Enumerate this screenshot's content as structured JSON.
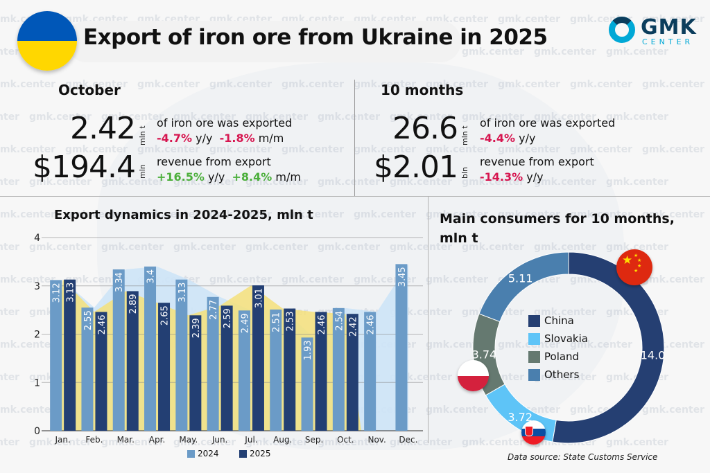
{
  "header": {
    "title": "Export of iron ore from Ukraine in 2025",
    "logo_main": "GMK",
    "logo_sub": "CENTER",
    "watermark": "gmk.center"
  },
  "colors": {
    "c2024": "#6b9bc7",
    "c2025": "#233f73",
    "area2024": "#cde4f7",
    "area2025": "#f5e07a",
    "negative": "#d6154f",
    "positive": "#4caf3c",
    "china": "#253f72",
    "slovakia": "#5ec4f7",
    "poland": "#657970",
    "others": "#4a7fae"
  },
  "october": {
    "title": "October",
    "volume": "2.42",
    "volume_unit": "mln t",
    "volume_desc": "of iron ore was exported",
    "volume_yy": "-4.7%",
    "volume_yy_label": "y/y",
    "volume_mm": "-1.8%",
    "volume_mm_label": "m/m",
    "revenue": "$194.4",
    "revenue_unit": "mln",
    "revenue_desc": "revenue from export",
    "revenue_yy": "+16.5%",
    "revenue_yy_label": "y/y",
    "revenue_mm": "+8.4%",
    "revenue_mm_label": "m/m"
  },
  "ten_months": {
    "title": "10 months",
    "volume": "26.6",
    "volume_unit": "mln t",
    "volume_desc": "of iron ore was exported",
    "volume_yy": "-4.4%",
    "volume_yy_label": "y/y",
    "revenue": "$2.01",
    "revenue_unit": "bln",
    "revenue_desc": "revenue from export",
    "revenue_yy": "-14.3%",
    "revenue_yy_label": "y/y"
  },
  "chart_data": [
    {
      "type": "bar",
      "title": "Export dynamics in 2024-2025, mln t",
      "categories": [
        "Jan.",
        "Feb.",
        "Mar.",
        "Apr.",
        "May.",
        "Jun.",
        "Jul.",
        "Aug.",
        "Sep.",
        "Oct.",
        "Nov.",
        "Dec."
      ],
      "series": [
        {
          "name": "2024",
          "values": [
            3.12,
            2.55,
            3.34,
            3.4,
            3.13,
            2.77,
            2.49,
            2.51,
            1.93,
            2.54,
            2.46,
            3.45
          ]
        },
        {
          "name": "2025",
          "values": [
            3.13,
            2.46,
            2.89,
            2.65,
            2.39,
            2.59,
            3.01,
            2.53,
            2.46,
            2.42,
            null,
            null
          ]
        }
      ],
      "yticks": [
        0,
        1,
        2,
        3,
        4
      ],
      "ylim": [
        0,
        4
      ],
      "xlabel": "",
      "ylabel": "",
      "grid": true,
      "legend": "bottom",
      "background_areas": true
    },
    {
      "type": "pie",
      "title": "Main consumers for 10 months, mln t",
      "labels": [
        "China",
        "Slovakia",
        "Poland",
        "Others"
      ],
      "values": [
        14.0,
        3.72,
        3.74,
        5.11
      ],
      "value_labels": [
        "14.0",
        "3.72",
        "3.74",
        "5.11"
      ],
      "donut": true,
      "legend": "center"
    }
  ],
  "footer": {
    "source": "Data source: State Customs Service"
  }
}
